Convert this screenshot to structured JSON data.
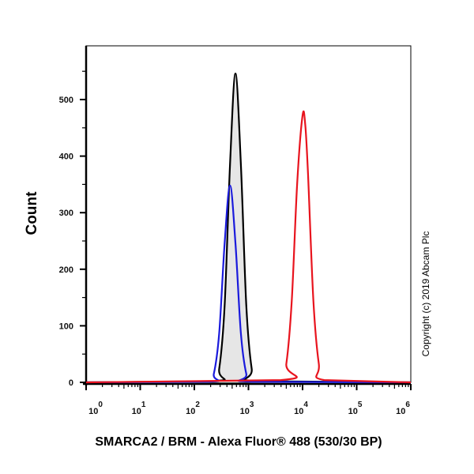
{
  "chart_data": {
    "type": "line",
    "title": "",
    "xlabel": "SMARCA2 / BRM - Alexa Fluor® 488 (530/30 BP)",
    "ylabel": "Count",
    "xscale": "log",
    "xlim": [
      1,
      1000000
    ],
    "ylim": [
      0,
      595
    ],
    "x_ticks": [
      {
        "base": "10",
        "exp": "0"
      },
      {
        "base": "10",
        "exp": "1"
      },
      {
        "base": "10",
        "exp": "2"
      },
      {
        "base": "10",
        "exp": "3"
      },
      {
        "base": "10",
        "exp": "4"
      },
      {
        "base": "10",
        "exp": "5"
      },
      {
        "base": "10",
        "exp": "6"
      }
    ],
    "y_ticks": [
      "0",
      "100",
      "200",
      "300",
      "400",
      "500"
    ],
    "grid": false,
    "annotation": "Copyright (c) 2019 Abcam Plc",
    "series": [
      {
        "color": "#000000",
        "fill": "#e6e6e6",
        "x": [
          1,
          229,
          288,
          363,
          457,
          575,
          724,
          912,
          1148,
          1445,
          1000000
        ],
        "y": [
          0,
          2,
          24,
          136,
          386,
          546,
          386,
          136,
          24,
          2,
          0
        ]
      },
      {
        "color": "#1a1adc",
        "x": [
          1,
          182,
          229,
          288,
          363,
          457,
          575,
          724,
          912,
          1148,
          1000000
        ],
        "y": [
          0,
          1,
          15,
          87,
          246,
          348,
          246,
          87,
          15,
          1,
          0
        ]
      },
      {
        "color": "#e8141e",
        "x": [
          1,
          3981,
          5012,
          6310,
          7943,
          10000,
          11220,
          12589,
          15849,
          19953,
          25119,
          1000000
        ],
        "y": [
          0,
          4,
          33,
          144,
          351,
          472,
          455,
          370,
          144,
          33,
          4,
          0
        ]
      }
    ]
  }
}
